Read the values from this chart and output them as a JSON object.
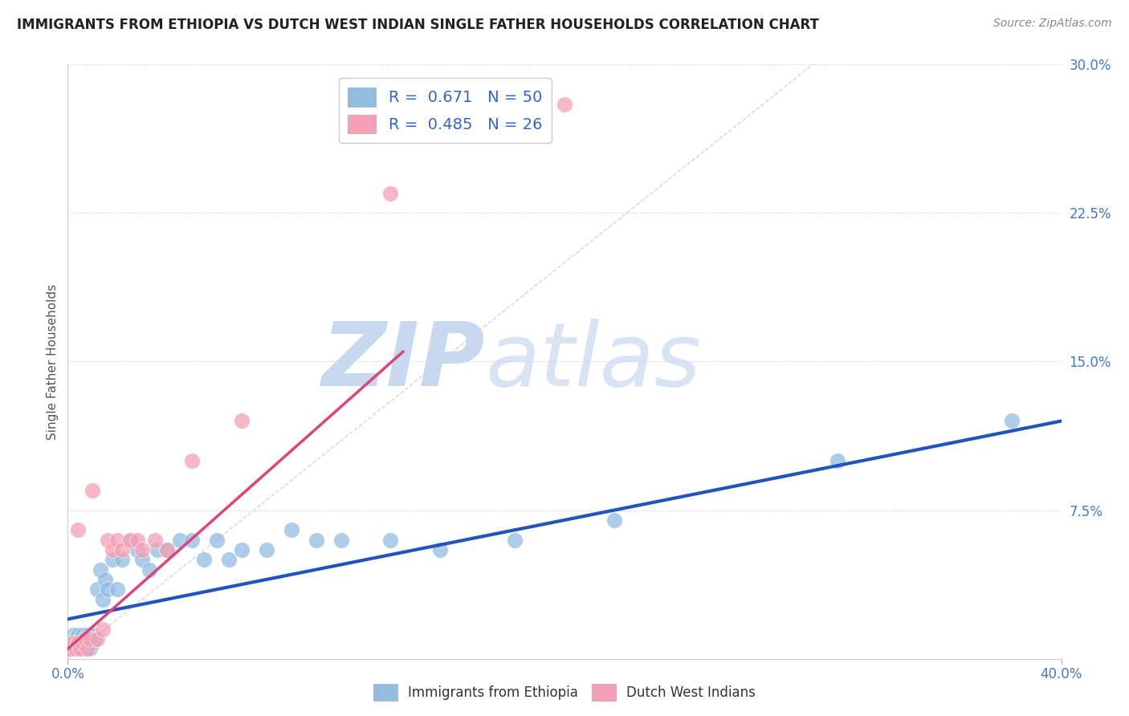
{
  "title": "IMMIGRANTS FROM ETHIOPIA VS DUTCH WEST INDIAN SINGLE FATHER HOUSEHOLDS CORRELATION CHART",
  "source": "Source: ZipAtlas.com",
  "ylabel": "Single Father Households",
  "xlim": [
    0.0,
    0.4
  ],
  "ylim": [
    0.0,
    0.3
  ],
  "xticks": [
    0.0,
    0.1,
    0.2,
    0.3,
    0.4
  ],
  "xtick_labels": [
    "0.0%",
    "",
    "",
    "",
    "40.0%"
  ],
  "yticks": [
    0.0,
    0.075,
    0.15,
    0.225,
    0.3
  ],
  "ytick_labels": [
    "",
    "7.5%",
    "15.0%",
    "22.5%",
    "30.0%"
  ],
  "legend_blue_label": "R =  0.671   N = 50",
  "legend_pink_label": "R =  0.485   N = 26",
  "blue_color": "#92bce0",
  "pink_color": "#f4a0b5",
  "blue_line_color": "#2255bb",
  "pink_line_color": "#dd4477",
  "ref_line_color": "#bbbbbb",
  "grid_color": "#cccccc",
  "watermark_zip": "ZIP",
  "watermark_atlas": "atlas",
  "watermark_color": "#c8d8f0",
  "blue_scatter_x": [
    0.001,
    0.002,
    0.002,
    0.003,
    0.003,
    0.004,
    0.004,
    0.005,
    0.005,
    0.006,
    0.006,
    0.007,
    0.007,
    0.008,
    0.008,
    0.009,
    0.009,
    0.01,
    0.01,
    0.011,
    0.012,
    0.013,
    0.014,
    0.015,
    0.016,
    0.018,
    0.02,
    0.022,
    0.025,
    0.028,
    0.03,
    0.033,
    0.036,
    0.04,
    0.045,
    0.05,
    0.055,
    0.06,
    0.065,
    0.07,
    0.08,
    0.09,
    0.1,
    0.11,
    0.13,
    0.15,
    0.18,
    0.22,
    0.31,
    0.38
  ],
  "blue_scatter_y": [
    0.005,
    0.008,
    0.012,
    0.006,
    0.01,
    0.008,
    0.012,
    0.005,
    0.01,
    0.008,
    0.012,
    0.005,
    0.01,
    0.008,
    0.012,
    0.005,
    0.01,
    0.008,
    0.012,
    0.01,
    0.035,
    0.045,
    0.03,
    0.04,
    0.035,
    0.05,
    0.035,
    0.05,
    0.06,
    0.055,
    0.05,
    0.045,
    0.055,
    0.055,
    0.06,
    0.06,
    0.05,
    0.06,
    0.05,
    0.055,
    0.055,
    0.065,
    0.06,
    0.06,
    0.06,
    0.055,
    0.06,
    0.07,
    0.1,
    0.12
  ],
  "pink_scatter_x": [
    0.001,
    0.002,
    0.003,
    0.004,
    0.004,
    0.005,
    0.006,
    0.007,
    0.008,
    0.009,
    0.01,
    0.012,
    0.014,
    0.016,
    0.018,
    0.02,
    0.022,
    0.025,
    0.028,
    0.03,
    0.035,
    0.04,
    0.05,
    0.07,
    0.13,
    0.2
  ],
  "pink_scatter_y": [
    0.005,
    0.008,
    0.005,
    0.008,
    0.065,
    0.005,
    0.008,
    0.01,
    0.005,
    0.01,
    0.085,
    0.01,
    0.015,
    0.06,
    0.055,
    0.06,
    0.055,
    0.06,
    0.06,
    0.055,
    0.06,
    0.055,
    0.1,
    0.12,
    0.235,
    0.28
  ],
  "blue_trend_x": [
    0.0,
    0.4
  ],
  "blue_trend_y": [
    0.02,
    0.12
  ],
  "pink_trend_x": [
    0.0,
    0.135
  ],
  "pink_trend_y": [
    0.005,
    0.155
  ],
  "ref_line_x": [
    0.0,
    0.3
  ],
  "ref_line_y": [
    0.0,
    0.3
  ]
}
